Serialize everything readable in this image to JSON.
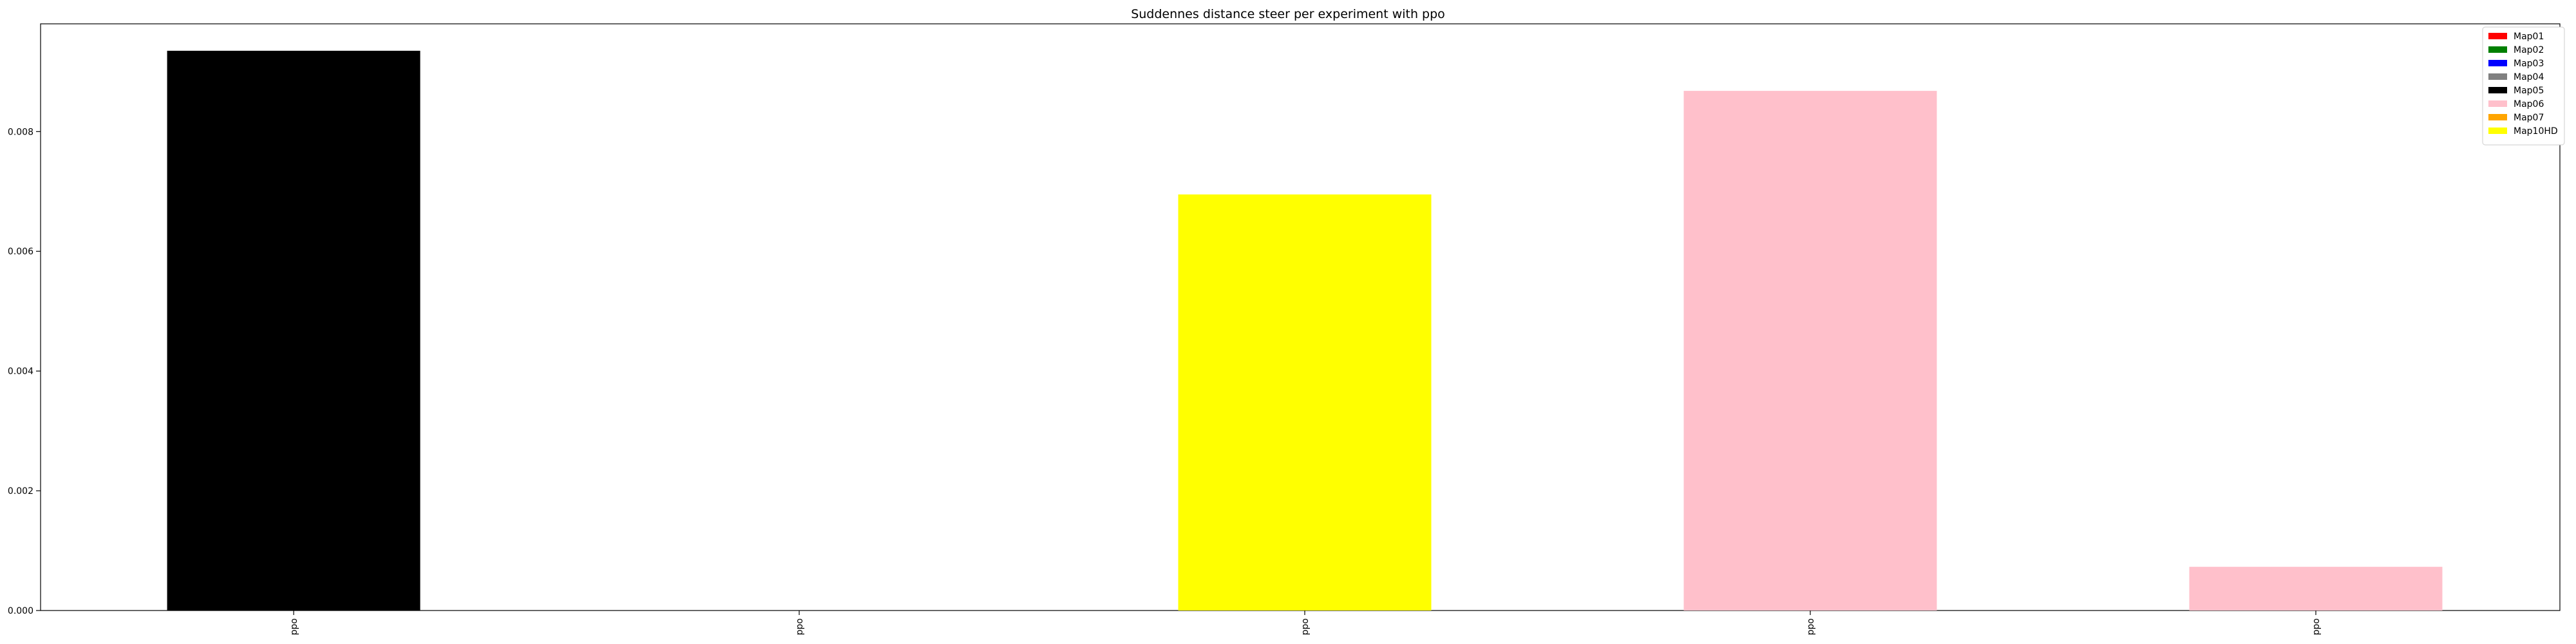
{
  "chart_data": {
    "type": "bar",
    "title": "Suddennes distance steer per experiment with ppo",
    "xlabel": "",
    "ylabel": "",
    "categories": [
      "ppo",
      "ppo",
      "ppo",
      "ppo",
      "ppo"
    ],
    "values": [
      0.00935,
      0.0,
      0.00695,
      0.00868,
      0.00073
    ],
    "bar_series": [
      "Map05",
      "",
      "Map10HD",
      "Map06",
      "Map06"
    ],
    "ylim": [
      0,
      0.0098
    ],
    "yticks": [
      0.0,
      0.002,
      0.004,
      0.006,
      0.008
    ],
    "ytick_labels": [
      "0.000",
      "0.002",
      "0.004",
      "0.006",
      "0.008"
    ],
    "grid": false,
    "legend_position": "top-right",
    "legend": [
      {
        "name": "Map01",
        "color": "#ff0000"
      },
      {
        "name": "Map02",
        "color": "#008000"
      },
      {
        "name": "Map03",
        "color": "#0000ff"
      },
      {
        "name": "Map04",
        "color": "#808080"
      },
      {
        "name": "Map05",
        "color": "#000000"
      },
      {
        "name": "Map06",
        "color": "#ffc0cb"
      },
      {
        "name": "Map07",
        "color": "#ffa500"
      },
      {
        "name": "Map10HD",
        "color": "#ffff00"
      }
    ]
  }
}
